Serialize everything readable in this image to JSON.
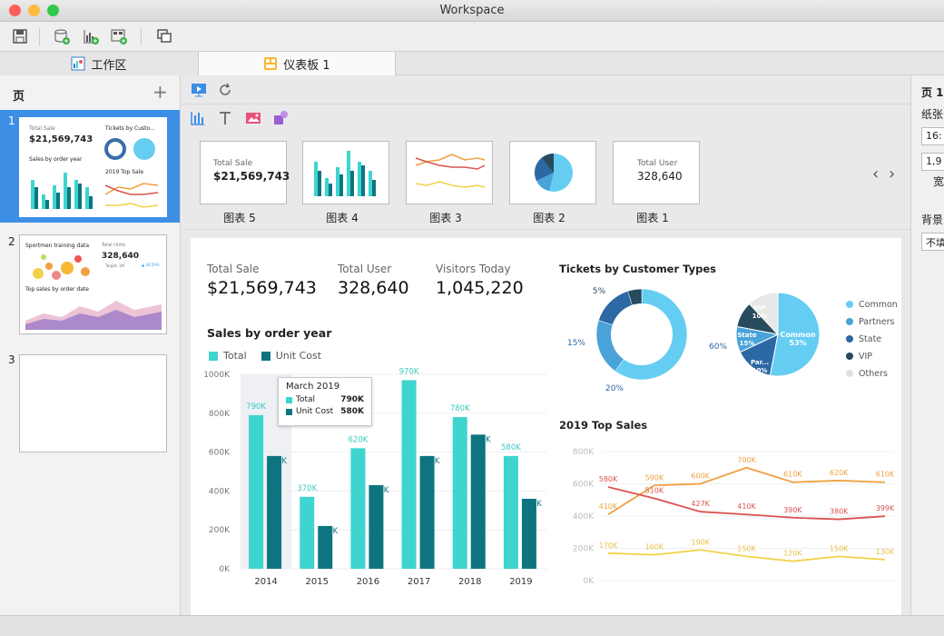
{
  "window": {
    "title": "Workspace"
  },
  "tabs": {
    "workspace": "工作区",
    "dashboard": "仪表板 1"
  },
  "pages": {
    "header": "页",
    "items": [
      {
        "num": "1",
        "line1": "Total Sale",
        "line2": "$21,569,743",
        "line3": "Sales by order year",
        "line4": "Tickets by Custo...",
        "line5": "2019 Top Sale"
      },
      {
        "num": "2",
        "line1": "Sportmen training data",
        "line2": "Total Units",
        "line3": "328,640",
        "line4": "Target: 1M",
        "line5": "Top sales by order date",
        "line6": "▲ 34.59%"
      },
      {
        "num": "3"
      }
    ]
  },
  "gallery": {
    "cards": [
      {
        "label": "图表 5",
        "title": "Total Sale",
        "value": "$21,569,743"
      },
      {
        "label": "图表 4"
      },
      {
        "label": "图表 3"
      },
      {
        "label": "图表 2"
      },
      {
        "label": "图表 1",
        "title": "Total User",
        "value": "328,640"
      }
    ],
    "prev": "‹",
    "next": "›"
  },
  "right_panel": {
    "title": "页 1",
    "paper": "纸张",
    "size": "16:",
    "res": "1,9",
    "width": "宽",
    "bg": "背景",
    "bg_value": "不填"
  },
  "dashboard": {
    "kpis": [
      {
        "label": "Total Sale",
        "value": "$21,569,743"
      },
      {
        "label": "Total User",
        "value": "328,640"
      },
      {
        "label": "Visitors Today",
        "value": "1,045,220"
      }
    ],
    "tooltip": {
      "title": "March 2019",
      "rows": [
        {
          "name": "Total",
          "value": "790K"
        },
        {
          "name": "Unit Cost",
          "value": "580K"
        }
      ]
    }
  },
  "chart_data": [
    {
      "type": "bar",
      "title": "Sales by order year",
      "categories": [
        "2014",
        "2015",
        "2016",
        "2017",
        "2018",
        "2019"
      ],
      "series": [
        {
          "name": "Total",
          "values": [
            790,
            370,
            620,
            970,
            780,
            580
          ],
          "labels": [
            "790K",
            "370K",
            "620K",
            "970K",
            "780K",
            "580K"
          ],
          "color": "#3ed4cf"
        },
        {
          "name": "Unit Cost",
          "values": [
            580,
            220,
            430,
            580,
            690,
            360
          ],
          "labels": [
            "580K",
            "220K",
            "430K",
            "580K",
            "690K",
            "360K"
          ],
          "color": "#0e7580"
        }
      ],
      "yticks": [
        "0K",
        "200K",
        "400K",
        "600K",
        "800K",
        "1000K"
      ],
      "ylim": [
        0,
        1000
      ],
      "legend": "top-left"
    },
    {
      "type": "pie",
      "title": "Tickets by Customer Types",
      "donut": {
        "values": [
          60,
          20,
          15,
          5
        ],
        "labels": [
          "60%",
          "20%",
          "15%",
          "5%"
        ],
        "colors": [
          "#66cdf2",
          "#4aa3d8",
          "#2c68a3",
          "#274a5c"
        ]
      },
      "pie": {
        "values": [
          53,
          15,
          10,
          10,
          12
        ],
        "labels": [
          "Common\n53%",
          "State\n15%",
          "Par...\n10%",
          "VIP\n10%",
          ""
        ],
        "colors": [
          "#66cdf2",
          "#2c68a3",
          "#4aa3d8",
          "#274a5c",
          "#e8e8e8"
        ]
      },
      "legend": {
        "position": "right",
        "items": [
          {
            "name": "Common",
            "color": "#66cdf2"
          },
          {
            "name": "Partners",
            "color": "#4aa3d8"
          },
          {
            "name": "State",
            "color": "#2c68a3"
          },
          {
            "name": "VIP",
            "color": "#274a5c"
          },
          {
            "name": "Others",
            "color": "#e0e0e0"
          }
        ]
      }
    },
    {
      "type": "line",
      "title": "2019 Top Sales",
      "x": [
        1,
        2,
        3,
        4,
        5,
        6,
        7
      ],
      "ylim": [
        0,
        800
      ],
      "yticks": [
        "0K",
        "200K",
        "400K",
        "600K",
        "800K"
      ],
      "series": [
        {
          "color": "#f0a040",
          "values": [
            410,
            590,
            600,
            700,
            610,
            620,
            610
          ],
          "labels": [
            "410K",
            "590K",
            "600K",
            "700K",
            "610K",
            "620K",
            "610K"
          ]
        },
        {
          "color": "#d9534f",
          "values": [
            580,
            510,
            427,
            410,
            390,
            380,
            399
          ],
          "labels": [
            "580K",
            "510K",
            "427K",
            "410K",
            "390K",
            "380K",
            "399K"
          ]
        },
        {
          "color": "#f2d24a",
          "values": [
            170,
            160,
            190,
            150,
            120,
            150,
            130
          ],
          "labels": [
            "170K",
            "160K",
            "190K",
            "150K",
            "120K",
            "150K",
            "130K"
          ]
        }
      ]
    }
  ]
}
